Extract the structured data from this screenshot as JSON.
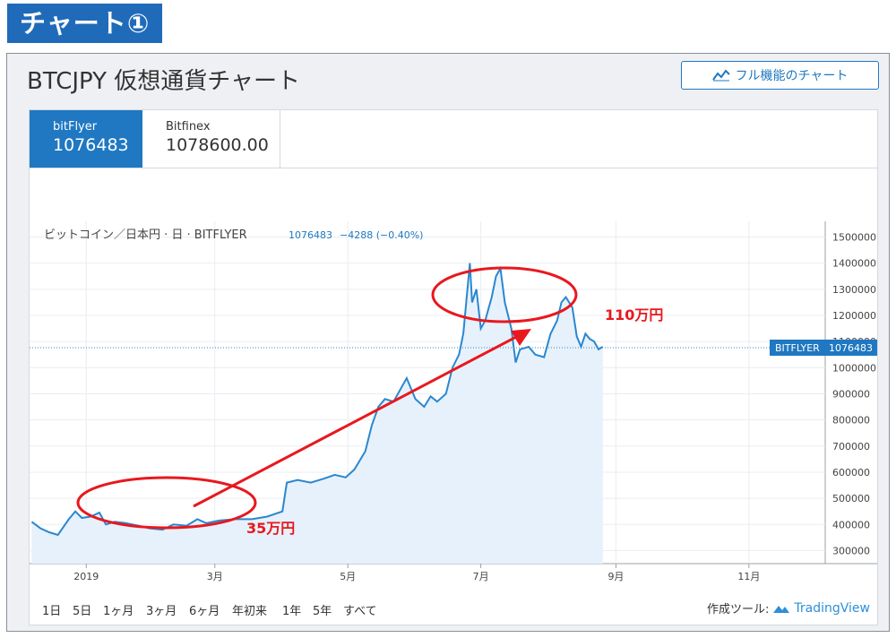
{
  "heading": "チャート①",
  "title": "BTCJPY 仮想通貨チャート",
  "full_chart_button": "フル機能のチャート",
  "exchanges": [
    {
      "name": "bitFlyer",
      "price": "1076483"
    },
    {
      "name": "Bitfinex",
      "price": "1078600.00"
    }
  ],
  "legend": {
    "symbol": "ビットコイン／日本円 · 日 · BITFLYER",
    "price": "1076483",
    "change": "−4288 (−0.40%)"
  },
  "price_tag": {
    "label": "BITFLYER",
    "value": "1076483"
  },
  "annotations": {
    "low": "35万円",
    "high": "110万円"
  },
  "ranges": [
    "1日",
    "5日",
    "1ヶ月",
    "3ヶ月",
    "6ヶ月",
    "年初来",
    "1年",
    "5年",
    "すべて"
  ],
  "credit": {
    "prefix": "作成ツール:",
    "brand": "TradingView"
  },
  "colors": {
    "accent": "#1f78c1",
    "line": "#2a87cf",
    "area": "#e6f1fb",
    "annotation": "#e8181e",
    "heading_bg": "#1f6bb9"
  },
  "chart_data": {
    "type": "area",
    "x_ticks": [
      "2019",
      "3月",
      "5月",
      "7月",
      "9月",
      "11月"
    ],
    "y_ticks": [
      300000,
      400000,
      500000,
      600000,
      700000,
      800000,
      900000,
      1000000,
      1100000,
      1200000,
      1300000,
      1400000,
      1500000
    ],
    "ylim": [
      250000,
      1560000
    ],
    "x_range": [
      "2018-12-06",
      "2019-12-06"
    ],
    "last_price": 1076483,
    "series": [
      {
        "values": [
          [
            "2018-12-07",
            410000
          ],
          [
            "2018-12-11",
            385000
          ],
          [
            "2018-12-15",
            370000
          ],
          [
            "2018-12-19",
            360000
          ],
          [
            "2018-12-24",
            420000
          ],
          [
            "2018-12-27",
            450000
          ],
          [
            "2018-12-30",
            425000
          ],
          [
            "2019-01-03",
            430000
          ],
          [
            "2019-01-07",
            445000
          ],
          [
            "2019-01-10",
            400000
          ],
          [
            "2019-01-14",
            410000
          ],
          [
            "2019-01-19",
            405000
          ],
          [
            "2019-01-25",
            395000
          ],
          [
            "2019-01-30",
            385000
          ],
          [
            "2019-02-05",
            380000
          ],
          [
            "2019-02-10",
            400000
          ],
          [
            "2019-02-16",
            395000
          ],
          [
            "2019-02-21",
            420000
          ],
          [
            "2019-02-25",
            405000
          ],
          [
            "2019-03-03",
            415000
          ],
          [
            "2019-03-10",
            420000
          ],
          [
            "2019-03-18",
            420000
          ],
          [
            "2019-03-25",
            430000
          ],
          [
            "2019-04-01",
            450000
          ],
          [
            "2019-04-03",
            560000
          ],
          [
            "2019-04-08",
            570000
          ],
          [
            "2019-04-14",
            560000
          ],
          [
            "2019-04-20",
            575000
          ],
          [
            "2019-04-25",
            590000
          ],
          [
            "2019-04-30",
            580000
          ],
          [
            "2019-05-04",
            610000
          ],
          [
            "2019-05-09",
            680000
          ],
          [
            "2019-05-12",
            780000
          ],
          [
            "2019-05-15",
            850000
          ],
          [
            "2019-05-18",
            880000
          ],
          [
            "2019-05-22",
            870000
          ],
          [
            "2019-05-26",
            930000
          ],
          [
            "2019-05-28",
            960000
          ],
          [
            "2019-06-01",
            880000
          ],
          [
            "2019-06-05",
            850000
          ],
          [
            "2019-06-08",
            890000
          ],
          [
            "2019-06-11",
            870000
          ],
          [
            "2019-06-15",
            900000
          ],
          [
            "2019-06-18",
            1000000
          ],
          [
            "2019-06-21",
            1050000
          ],
          [
            "2019-06-23",
            1130000
          ],
          [
            "2019-06-26",
            1400000
          ],
          [
            "2019-06-27",
            1250000
          ],
          [
            "2019-06-29",
            1300000
          ],
          [
            "2019-07-01",
            1150000
          ],
          [
            "2019-07-03",
            1180000
          ],
          [
            "2019-07-06",
            1270000
          ],
          [
            "2019-07-08",
            1350000
          ],
          [
            "2019-07-10",
            1380000
          ],
          [
            "2019-07-12",
            1250000
          ],
          [
            "2019-07-15",
            1150000
          ],
          [
            "2019-07-17",
            1020000
          ],
          [
            "2019-07-19",
            1070000
          ],
          [
            "2019-07-23",
            1080000
          ],
          [
            "2019-07-26",
            1050000
          ],
          [
            "2019-07-30",
            1040000
          ],
          [
            "2019-08-02",
            1130000
          ],
          [
            "2019-08-05",
            1180000
          ],
          [
            "2019-08-07",
            1250000
          ],
          [
            "2019-08-09",
            1270000
          ],
          [
            "2019-08-12",
            1230000
          ],
          [
            "2019-08-14",
            1120000
          ],
          [
            "2019-08-16",
            1080000
          ],
          [
            "2019-08-18",
            1130000
          ],
          [
            "2019-08-20",
            1110000
          ],
          [
            "2019-08-22",
            1100000
          ],
          [
            "2019-08-24",
            1070000
          ],
          [
            "2019-08-26",
            1080000
          ]
        ]
      }
    ]
  }
}
